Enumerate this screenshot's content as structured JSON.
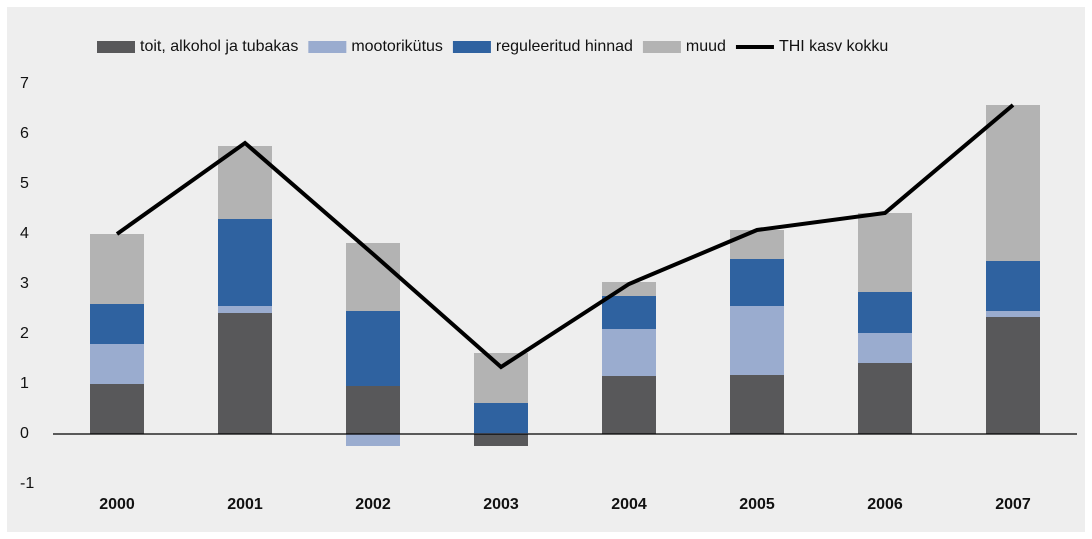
{
  "chart_data": {
    "type": "bar",
    "stacked": true,
    "categories": [
      "2000",
      "2001",
      "2002",
      "2003",
      "2004",
      "2005",
      "2006",
      "2007"
    ],
    "series": [
      {
        "name": "toit, alkohol ja tubakas",
        "color": "#58585a",
        "values": [
          1.0,
          2.42,
          0.96,
          -0.24,
          1.16,
          1.18,
          1.42,
          2.34
        ]
      },
      {
        "name": "mootorikütus",
        "color": "#9aaccf",
        "values": [
          0.8,
          0.14,
          -0.24,
          0.02,
          0.94,
          1.38,
          0.6,
          0.12
        ]
      },
      {
        "name": "reguleeritud hinnad",
        "color": "#2f62a0",
        "values": [
          0.8,
          1.74,
          1.5,
          0.6,
          0.66,
          0.94,
          0.82,
          1.0
        ]
      },
      {
        "name": "muud",
        "color": "#b3b3b3",
        "values": [
          1.4,
          1.46,
          1.36,
          1.0,
          0.28,
          0.58,
          1.58,
          3.12
        ]
      },
      {
        "name": "THI kasv kokku",
        "type": "line",
        "color": "#000000",
        "values": [
          4.0,
          5.82,
          3.6,
          1.34,
          3.0,
          4.08,
          4.42,
          6.58
        ]
      }
    ],
    "ylim": [
      -1,
      7
    ],
    "yticks": [
      -1,
      0,
      1,
      2,
      3,
      4,
      5,
      6,
      7
    ],
    "grid": false,
    "legend": "top"
  }
}
